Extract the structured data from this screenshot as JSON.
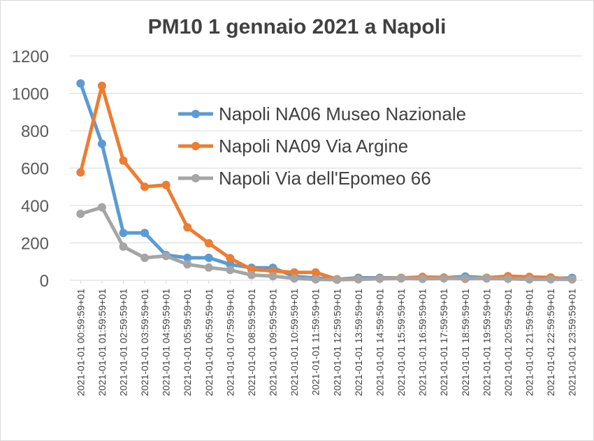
{
  "chart_data": {
    "type": "line",
    "title": "PM10 1 gennaio 2021 a Napoli",
    "xlabel": "",
    "ylabel": "",
    "ylim": [
      0,
      1200
    ],
    "yticks": [
      0,
      200,
      400,
      600,
      800,
      1000,
      1200
    ],
    "grid": true,
    "legend_position": "top-right",
    "categories": [
      "2021-01-01 00:59:59+01",
      "2021-01-01 01:59:59+01",
      "2021-01-01 02:59:59+01",
      "2021-01-01 03:59:59+01",
      "2021-01-01 04:59:59+01",
      "2021-01-01 05:59:59+01",
      "2021-01-01 06:59:59+01",
      "2021-01-01 07:59:59+01",
      "2021-01-01 08:59:59+01",
      "2021-01-01 09:59:59+01",
      "2021-01-01 10:59:59+01",
      "2021-01-01 11:59:59+01",
      "2021-01-01 12:59:59+01",
      "2021-01-01 13:59:59+01",
      "2021-01-01 14:59:59+01",
      "2021-01-01 15:59:59+01",
      "2021-01-01 16:59:59+01",
      "2021-01-01 17:59:59+01",
      "2021-01-01 18:59:59+01",
      "2021-01-01 19:59:59+01",
      "2021-01-01 20:59:59+01",
      "2021-01-01 21:59:59+01",
      "2021-01-01 22:59:59+01",
      "2021-01-01 23:59:59+01"
    ],
    "series": [
      {
        "name": "Napoli NA06 Museo Nazionale",
        "color": "#5B9BD5",
        "values": [
          1053,
          730,
          253,
          253,
          135,
          120,
          120,
          85,
          67,
          67,
          20,
          12,
          5,
          13,
          13,
          13,
          10,
          13,
          20,
          13,
          13,
          8,
          8,
          13
        ]
      },
      {
        "name": "Napoli NA09 Via Argine",
        "color": "#ED7D31",
        "values": [
          577,
          1040,
          640,
          500,
          510,
          283,
          198,
          118,
          58,
          50,
          42,
          42,
          5,
          8,
          10,
          12,
          18,
          15,
          8,
          13,
          22,
          18,
          15,
          5
        ]
      },
      {
        "name": "Napoli Via dell'Epomeo 66",
        "color": "#A5A5A5",
        "values": [
          355,
          390,
          180,
          120,
          130,
          85,
          68,
          55,
          28,
          22,
          10,
          5,
          3,
          5,
          8,
          10,
          8,
          10,
          10,
          10,
          8,
          5,
          5,
          5
        ]
      }
    ]
  }
}
